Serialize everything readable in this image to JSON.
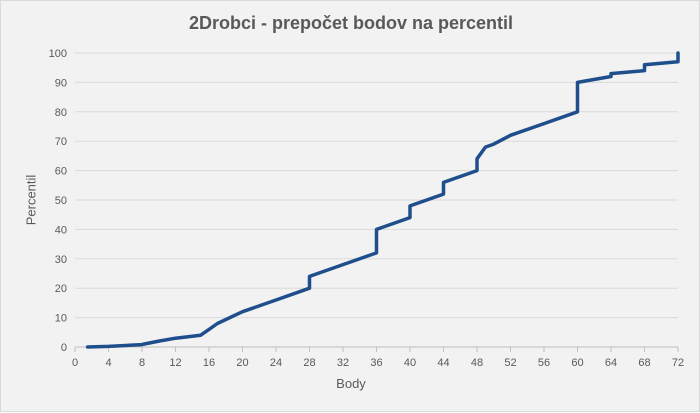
{
  "chart_data": {
    "type": "line",
    "title": "2Drobci - prepočet bodov na percentil",
    "xlabel": "Body",
    "ylabel": "Percentil",
    "xlim": [
      0,
      72
    ],
    "ylim": [
      0,
      100
    ],
    "x_ticks": [
      0,
      4,
      8,
      12,
      16,
      20,
      24,
      28,
      32,
      36,
      40,
      44,
      48,
      52,
      56,
      60,
      64,
      68,
      72
    ],
    "y_ticks": [
      0,
      10,
      20,
      30,
      40,
      50,
      60,
      70,
      80,
      90,
      100
    ],
    "grid": "horizontal",
    "legend": "none",
    "line_color": "#1f4e8c",
    "series": [
      {
        "x": [
          1.5,
          4,
          8,
          8.2,
          10,
          12,
          15,
          16,
          17,
          20,
          24,
          28,
          28,
          36,
          36,
          40,
          40,
          44,
          44,
          48,
          48,
          49,
          50,
          52,
          56,
          60,
          60,
          64,
          64,
          68,
          68,
          72,
          72
        ],
        "y": [
          0,
          0.2,
          0.8,
          1,
          2,
          3,
          4,
          6,
          8,
          12,
          16,
          20,
          24,
          32,
          40,
          44,
          48,
          52,
          56,
          60,
          64,
          68,
          69,
          72,
          76,
          80,
          90,
          92,
          93,
          94,
          96,
          97,
          100
        ]
      }
    ]
  }
}
